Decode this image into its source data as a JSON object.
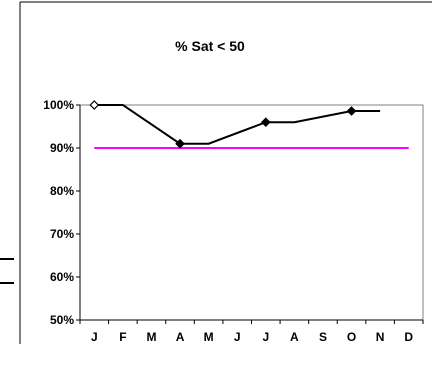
{
  "chart_data": {
    "type": "line",
    "title": "% Sat < 50",
    "categories": [
      "J",
      "F",
      "M",
      "A",
      "M",
      "J",
      "J",
      "A",
      "S",
      "O",
      "N",
      "D"
    ],
    "ylim": [
      50,
      100
    ],
    "yticks": [
      50,
      60,
      70,
      80,
      90,
      100
    ],
    "ytick_labels": [
      "50%",
      "60%",
      "70%",
      "80%",
      "90%",
      "100%"
    ],
    "grid": false,
    "legend": "none",
    "series": [
      {
        "values": [
          100,
          100,
          null,
          91,
          91,
          null,
          96,
          96,
          null,
          98.6,
          98.6,
          null
        ],
        "markers": [
          0,
          3,
          6,
          9
        ],
        "color": "#000000"
      }
    ],
    "reference_line": {
      "value": 90,
      "color": "#ff00ff",
      "from": 0,
      "to": 11
    }
  }
}
